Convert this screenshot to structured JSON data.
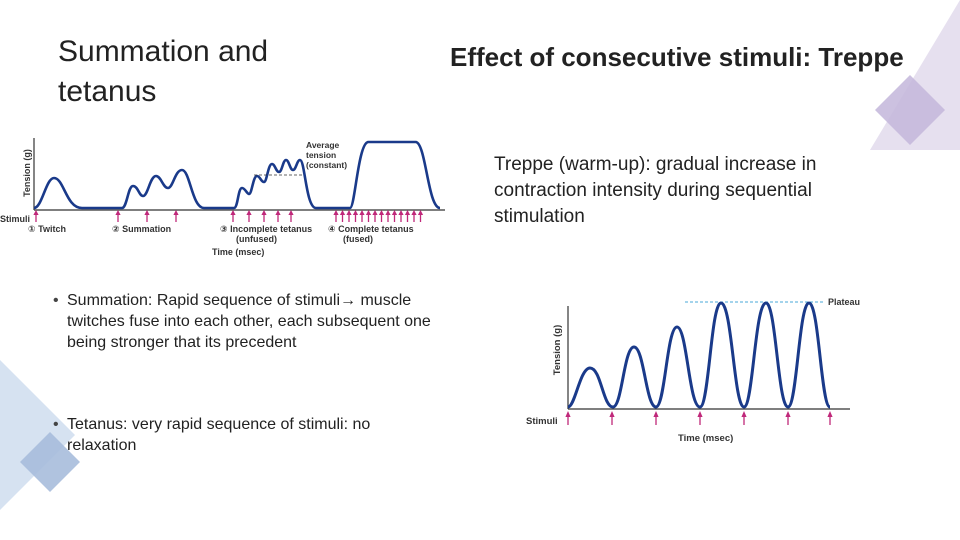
{
  "titles": {
    "left": "Summation and tetanus",
    "right": "Effect of consecutive stimuli: Treppe"
  },
  "treppe_description": "Treppe (warm-up): gradual increase in contraction intensity during sequential stimulation",
  "bullets": [
    {
      "label": "Summation: Rapid sequence of stimuli→ muscle twitches fuse into each other, each subsequent one being stronger that its precedent"
    },
    {
      "label": "Tetanus: very rapid sequence of stimuli: no relaxation"
    }
  ],
  "figure_left": {
    "y_axis_label": "Tension (g)",
    "stimuli_label": "Stimuli",
    "x_axis_label": "Time (msec)",
    "average_tension_label": [
      "Average",
      "tension",
      "(constant)"
    ],
    "phases": [
      {
        "num": "①",
        "label": "Twitch",
        "sub": ""
      },
      {
        "num": "②",
        "label": "Summation",
        "sub": ""
      },
      {
        "num": "③",
        "label": "Incomplete tetanus",
        "sub": "(unfused)"
      },
      {
        "num": "④",
        "label": "Complete tetanus",
        "sub": "(fused)"
      }
    ]
  },
  "figure_right": {
    "y_axis_label": "Tension (g)",
    "stimuli_label": "Stimuli",
    "x_axis_label": "Time (msec)",
    "plateau_label": "Plateau"
  },
  "colors": {
    "curve": "#1a3a8a",
    "arrow": "#c0287a",
    "deco_light": "#dcd4e8",
    "deco_mid": "#bcaed4",
    "deco_blue": "#c8d8ec",
    "deco_blue_dark": "#9ab2d6"
  }
}
